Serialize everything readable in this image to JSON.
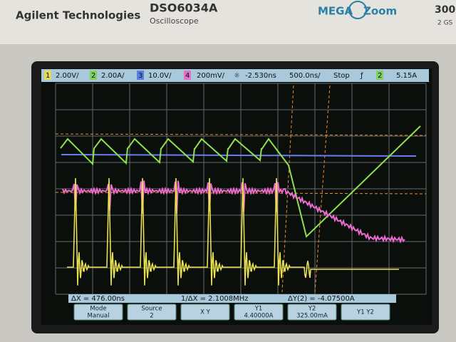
{
  "header": {
    "brand": "Agilent Technologies",
    "model": "DSO6034A",
    "subtitle": "Oscilloscope",
    "logo_left": "MEGA",
    "logo_right": "Zoom",
    "spec_top": "300",
    "spec_bottom": "2 GS"
  },
  "status_bar": {
    "channels": [
      {
        "number": "1",
        "scale": "2.00V/"
      },
      {
        "number": "2",
        "scale": "2.00A/"
      },
      {
        "number": "3",
        "scale": "10.0V/"
      },
      {
        "number": "4",
        "scale": "200mV/"
      }
    ],
    "delay": "-2.530ns",
    "timebase": "500.0ns/",
    "run_state": "Stop",
    "trigger_channel": "2",
    "trigger_level": "5.15A"
  },
  "measurements": [
    "ΔX = 476.00ns",
    "1/ΔX = 2.1008MHz",
    "ΔY(2) = -4.07500A"
  ],
  "softkeys": [
    {
      "label": "Mode",
      "value": "Manual"
    },
    {
      "label": "Source",
      "value": "2"
    },
    {
      "label": "X  Y"
    },
    {
      "label": "Y1",
      "value": "4.40000A"
    },
    {
      "label": "Y2",
      "value": "325.00mA"
    },
    {
      "label": "Y1  Y2"
    }
  ]
}
